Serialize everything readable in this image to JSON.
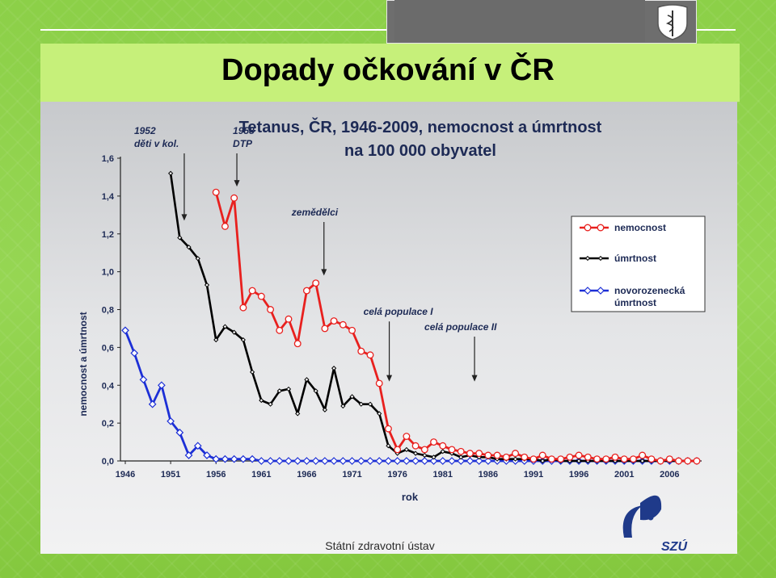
{
  "slide": {
    "title": "Dopady očkování v ČR",
    "footer": "Státní zdravotní ústav",
    "logo_text": "SZÚ"
  },
  "chart_data": {
    "type": "line",
    "title_line1": "Tetanus, ČR, 1946-2009, nemocnost a úmrtnost",
    "title_line2": "na 100 000 obyvatel",
    "xlabel": "rok",
    "ylabel": "nemocnost a úmrtnost",
    "xlim": [
      1946,
      2009
    ],
    "ylim": [
      0,
      1.6
    ],
    "x_ticks": [
      "1946",
      "1951",
      "1956",
      "1961",
      "1966",
      "1971",
      "1976",
      "1981",
      "1986",
      "1991",
      "1996",
      "2001",
      "2006"
    ],
    "y_ticks": [
      "0,0",
      "0,2",
      "0,4",
      "0,6",
      "0,8",
      "1,0",
      "1,2",
      "1,4",
      "1,6"
    ],
    "legend_position": "right",
    "series": [
      {
        "name": "nemocnost",
        "color": "#e8201e",
        "marker": "circle",
        "points": [
          [
            1956,
            1.42
          ],
          [
            1957,
            1.24
          ],
          [
            1958,
            1.39
          ],
          [
            1959,
            0.81
          ],
          [
            1960,
            0.9
          ],
          [
            1961,
            0.87
          ],
          [
            1962,
            0.8
          ],
          [
            1963,
            0.69
          ],
          [
            1964,
            0.75
          ],
          [
            1965,
            0.62
          ],
          [
            1966,
            0.9
          ],
          [
            1967,
            0.94
          ],
          [
            1968,
            0.7
          ],
          [
            1969,
            0.74
          ],
          [
            1970,
            0.72
          ],
          [
            1971,
            0.69
          ],
          [
            1972,
            0.58
          ],
          [
            1973,
            0.56
          ],
          [
            1974,
            0.41
          ],
          [
            1975,
            0.17
          ],
          [
            1976,
            0.06
          ],
          [
            1977,
            0.13
          ],
          [
            1978,
            0.08
          ],
          [
            1979,
            0.06
          ],
          [
            1980,
            0.1
          ],
          [
            1981,
            0.08
          ],
          [
            1982,
            0.06
          ],
          [
            1983,
            0.05
          ],
          [
            1984,
            0.04
          ],
          [
            1985,
            0.04
          ],
          [
            1986,
            0.03
          ],
          [
            1987,
            0.03
          ],
          [
            1988,
            0.02
          ],
          [
            1989,
            0.04
          ],
          [
            1990,
            0.02
          ],
          [
            1991,
            0.01
          ],
          [
            1992,
            0.03
          ],
          [
            1993,
            0.01
          ],
          [
            1994,
            0.01
          ],
          [
            1995,
            0.02
          ],
          [
            1996,
            0.03
          ],
          [
            1997,
            0.02
          ],
          [
            1998,
            0.01
          ],
          [
            1999,
            0.01
          ],
          [
            2000,
            0.02
          ],
          [
            2001,
            0.01
          ],
          [
            2002,
            0.01
          ],
          [
            2003,
            0.03
          ],
          [
            2004,
            0.01
          ],
          [
            2005,
            0.0
          ],
          [
            2006,
            0.01
          ],
          [
            2007,
            0.0
          ],
          [
            2008,
            0.0
          ],
          [
            2009,
            0.0
          ]
        ]
      },
      {
        "name": "úmrtnost",
        "color": "#000000",
        "marker": "small",
        "points": [
          [
            1951,
            1.52
          ],
          [
            1952,
            1.18
          ],
          [
            1953,
            1.13
          ],
          [
            1954,
            1.07
          ],
          [
            1955,
            0.93
          ],
          [
            1956,
            0.64
          ],
          [
            1957,
            0.71
          ],
          [
            1958,
            0.68
          ],
          [
            1959,
            0.64
          ],
          [
            1960,
            0.47
          ],
          [
            1961,
            0.32
          ],
          [
            1962,
            0.3
          ],
          [
            1963,
            0.37
          ],
          [
            1964,
            0.38
          ],
          [
            1965,
            0.25
          ],
          [
            1966,
            0.43
          ],
          [
            1967,
            0.37
          ],
          [
            1968,
            0.27
          ],
          [
            1969,
            0.49
          ],
          [
            1970,
            0.29
          ],
          [
            1971,
            0.34
          ],
          [
            1972,
            0.3
          ],
          [
            1973,
            0.3
          ],
          [
            1974,
            0.25
          ],
          [
            1975,
            0.08
          ],
          [
            1976,
            0.04
          ],
          [
            1977,
            0.06
          ],
          [
            1978,
            0.04
          ],
          [
            1979,
            0.03
          ],
          [
            1980,
            0.02
          ],
          [
            1981,
            0.05
          ],
          [
            1982,
            0.04
          ],
          [
            1983,
            0.02
          ],
          [
            1984,
            0.03
          ],
          [
            1985,
            0.02
          ],
          [
            1986,
            0.02
          ],
          [
            1987,
            0.01
          ],
          [
            1988,
            0.01
          ],
          [
            1989,
            0.01
          ],
          [
            1990,
            0.01
          ],
          [
            1991,
            0.01
          ],
          [
            1992,
            0.0
          ],
          [
            1993,
            0.01
          ],
          [
            1994,
            0.0
          ],
          [
            1995,
            0.0
          ],
          [
            1996,
            0.0
          ],
          [
            1997,
            0.0
          ],
          [
            1998,
            0.0
          ],
          [
            1999,
            0.0
          ],
          [
            2000,
            0.0
          ],
          [
            2001,
            0.0
          ],
          [
            2002,
            0.0
          ],
          [
            2003,
            0.0
          ],
          [
            2004,
            0.0
          ],
          [
            2005,
            0.0
          ],
          [
            2006,
            0.0
          ],
          [
            2007,
            0.0
          ],
          [
            2008,
            0.0
          ],
          [
            2009,
            0.0
          ]
        ]
      },
      {
        "name": "novorozenecká úmrtnost",
        "color": "#1c2fd6",
        "marker": "diamond",
        "points": [
          [
            1946,
            0.69
          ],
          [
            1947,
            0.57
          ],
          [
            1948,
            0.43
          ],
          [
            1949,
            0.3
          ],
          [
            1950,
            0.4
          ],
          [
            1951,
            0.21
          ],
          [
            1952,
            0.15
          ],
          [
            1953,
            0.03
          ],
          [
            1954,
            0.08
          ],
          [
            1955,
            0.03
          ],
          [
            1956,
            0.01
          ],
          [
            1957,
            0.01
          ],
          [
            1958,
            0.01
          ],
          [
            1959,
            0.01
          ],
          [
            1960,
            0.01
          ],
          [
            1961,
            0.0
          ],
          [
            1962,
            0.0
          ],
          [
            1963,
            0.0
          ],
          [
            1964,
            0.0
          ],
          [
            1965,
            0.0
          ],
          [
            1966,
            0.0
          ],
          [
            1967,
            0.0
          ],
          [
            1968,
            0.0
          ],
          [
            1969,
            0.0
          ],
          [
            1970,
            0.0
          ],
          [
            1971,
            0.0
          ],
          [
            1972,
            0.0
          ],
          [
            1973,
            0.0
          ],
          [
            1974,
            0.0
          ],
          [
            1975,
            0.0
          ],
          [
            1976,
            0.0
          ],
          [
            1977,
            0.0
          ],
          [
            1978,
            0.0
          ],
          [
            1979,
            0.0
          ],
          [
            1980,
            0.0
          ],
          [
            1981,
            0.0
          ],
          [
            1982,
            0.0
          ],
          [
            1983,
            0.0
          ],
          [
            1984,
            0.0
          ],
          [
            1985,
            0.0
          ],
          [
            1986,
            0.0
          ],
          [
            1987,
            0.0
          ],
          [
            1988,
            0.0
          ],
          [
            1989,
            0.0
          ],
          [
            1990,
            0.0
          ],
          [
            1991,
            0.0
          ],
          [
            1992,
            0.0
          ],
          [
            1993,
            0.0
          ],
          [
            1994,
            0.0
          ],
          [
            1995,
            0.0
          ],
          [
            1996,
            0.0
          ],
          [
            1997,
            0.0
          ],
          [
            1998,
            0.0
          ],
          [
            1999,
            0.0
          ],
          [
            2000,
            0.0
          ],
          [
            2001,
            0.0
          ],
          [
            2002,
            0.0
          ],
          [
            2003,
            0.0
          ],
          [
            2004,
            0.0
          ],
          [
            2005,
            0.0
          ],
          [
            2006,
            0.0
          ],
          [
            2007,
            0.0
          ],
          [
            2008,
            0.0
          ],
          [
            2009,
            0.0
          ]
        ]
      }
    ],
    "annotations": [
      {
        "lines": [
          "1952",
          "děti v kol."
        ],
        "x": 1952.5,
        "y_top": 1.55,
        "y_bottom": 1.27
      },
      {
        "lines": [
          "1958",
          "DTP"
        ],
        "x": 1958.3,
        "y_top": 1.62,
        "y_bottom": 1.45
      },
      {
        "lines": [
          "zemědělci"
        ],
        "x": 1967.9,
        "y_top": 1.28,
        "y_bottom": 0.98
      },
      {
        "lines": [
          "celá populace I"
        ],
        "x": 1975.1,
        "y_top": 0.75,
        "y_bottom": 0.42
      },
      {
        "lines": [
          "celá populace II"
        ],
        "x": 1984.5,
        "y_top": 0.67,
        "y_bottom": 0.42
      }
    ]
  }
}
